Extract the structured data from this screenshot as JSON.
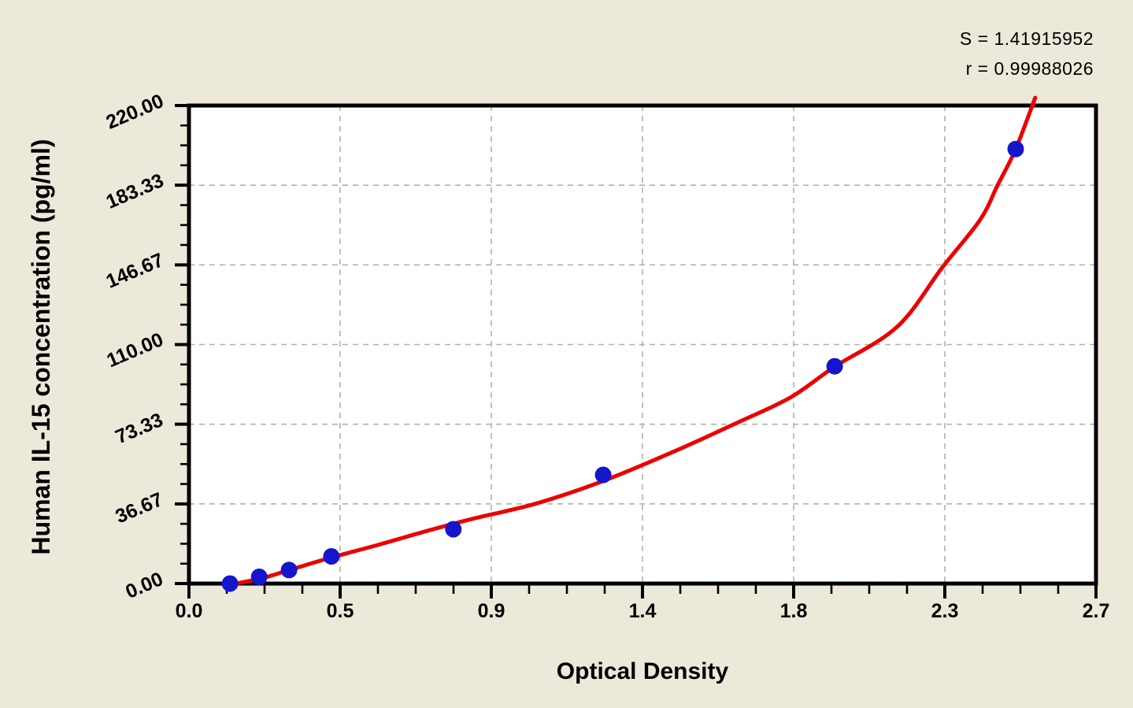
{
  "chart_data": {
    "type": "scatter",
    "title": "",
    "subtitle": "",
    "xlabel": "Optical Density",
    "ylabel": "Human IL-15 concentration (pg/ml)",
    "xlim": [
      0,
      2.7
    ],
    "ylim": [
      0,
      220
    ],
    "x_tick_labels": [
      "0.0",
      "0.5",
      "0.9",
      "1.4",
      "1.8",
      "2.3",
      "2.7"
    ],
    "y_tick_labels": [
      "0.00",
      "36.67",
      "73.33",
      "110.00",
      "146.67",
      "183.33",
      "220.00"
    ],
    "x_major_step": 0.45,
    "y_major_step": 36.6667,
    "minor_divisions_per_major": 4,
    "grid": "dashed gray at major ticks, both axes",
    "legend_position": "none",
    "annotations": {
      "s_label": "S = 1.41915952",
      "r_label": "r = 0.99988026"
    },
    "series": [
      {
        "name": "standard-points",
        "type": "scatter",
        "marker": "filled-circle",
        "points_od_conc": [
          [
            0.122,
            0
          ],
          [
            0.209,
            3.125
          ],
          [
            0.298,
            6.25
          ],
          [
            0.424,
            12.5
          ],
          [
            0.787,
            25
          ],
          [
            1.233,
            50
          ],
          [
            1.922,
            100
          ],
          [
            2.461,
            200
          ]
        ]
      },
      {
        "name": "fitted-curve",
        "type": "line",
        "points_od_conc": [
          [
            0.108,
            -0.8
          ],
          [
            0.211,
            2.2
          ],
          [
            0.298,
            6.2
          ],
          [
            0.424,
            12.0
          ],
          [
            0.563,
            17.8
          ],
          [
            0.703,
            24.0
          ],
          [
            0.844,
            29.8
          ],
          [
            1.031,
            36.7
          ],
          [
            1.233,
            47.2
          ],
          [
            1.453,
            61.4
          ],
          [
            1.633,
            74.1
          ],
          [
            1.791,
            85.7
          ],
          [
            1.922,
            99.8
          ],
          [
            2.109,
            118.3
          ],
          [
            2.243,
            145.6
          ],
          [
            2.355,
            167.4
          ],
          [
            2.407,
            183.3
          ],
          [
            2.461,
            200.0
          ],
          [
            2.519,
            223.6
          ]
        ]
      }
    ],
    "colors": {
      "page_bg": "#ece9da",
      "plot_bg": "#ffffff",
      "axis": "#000000",
      "grid": "#b2b2a6",
      "point": "#1515cd",
      "curve": "#ec0000",
      "text": "#000000"
    }
  }
}
